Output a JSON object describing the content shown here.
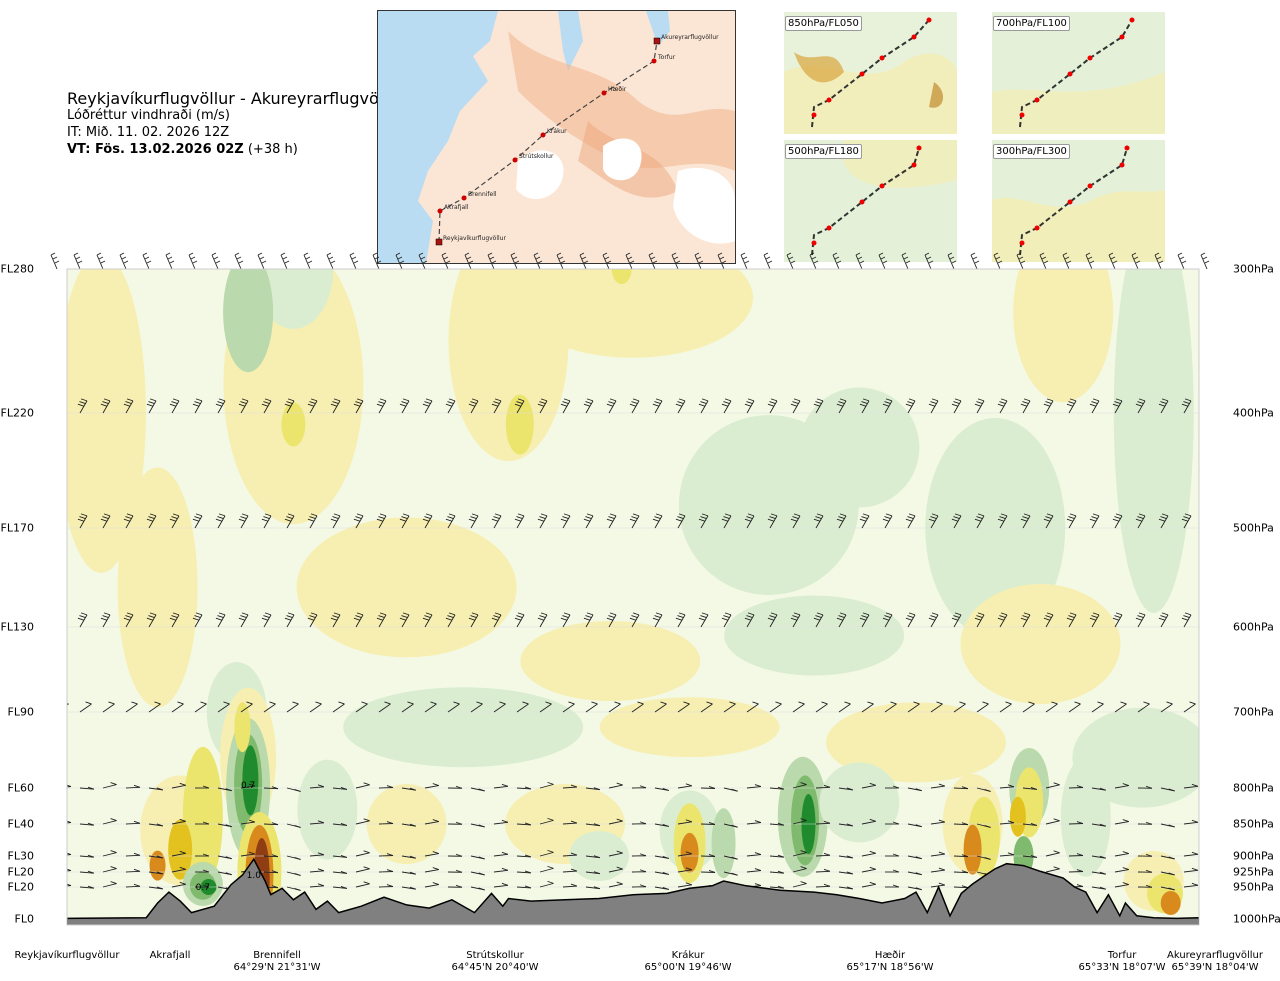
{
  "header": {
    "route": "Reykjavíkurflugvöllur - Akureyrarflugvöllur",
    "parameter": "Lóðréttur vindhraði (m/s)",
    "issued": "IT: Mið. 11. 02. 2026 12Z",
    "valid_prefix": "VT: Fös. 13.02.2026 02Z",
    "valid_suffix": " (+38 h)"
  },
  "map": {
    "points": [
      {
        "name": "Akureyrarflugvöllur"
      },
      {
        "name": "Torfur"
      },
      {
        "name": "Hæðir"
      },
      {
        "name": "Krákur"
      },
      {
        "name": "Strútskollur"
      },
      {
        "name": "Brennifell"
      },
      {
        "name": "Akrafjall"
      },
      {
        "name": "Reykjavíkurflugvöllur"
      }
    ]
  },
  "mini_maps": [
    {
      "label": "850hPa/FL050"
    },
    {
      "label": "700hPa/FL100"
    },
    {
      "label": "500hPa/FL180"
    },
    {
      "label": "300hPa/FL300"
    }
  ],
  "chart_data": {
    "type": "heatmap",
    "variable": "Lóðréttur vindhraði (m/s)",
    "y_levels": [
      {
        "fl": "FL280",
        "hpa": "300hPa",
        "p": 300
      },
      {
        "fl": "FL220",
        "hpa": "400hPa",
        "p": 400
      },
      {
        "fl": "FL170",
        "hpa": "500hPa",
        "p": 500
      },
      {
        "fl": "FL130",
        "hpa": "600hPa",
        "p": 600
      },
      {
        "fl": "FL90",
        "hpa": "700hPa",
        "p": 700
      },
      {
        "fl": "FL60",
        "hpa": "800hPa",
        "p": 800
      },
      {
        "fl": "FL40",
        "hpa": "850hPa",
        "p": 850
      },
      {
        "fl": "FL30",
        "hpa": "900hPa",
        "p": 900
      },
      {
        "fl": "FL20",
        "hpa": "925hPa",
        "p": 925
      },
      {
        "fl": "FL20",
        "hpa": "950hPa",
        "p": 950
      },
      {
        "fl": "FL0",
        "hpa": "1000hPa",
        "p": 1000
      }
    ],
    "x_waypoints": [
      {
        "name": "Reykjavíkurflugvöllur",
        "coords": "",
        "pos": 0.0
      },
      {
        "name": "Akrafjall",
        "coords": "",
        "pos": 0.09
      },
      {
        "name": "Brennifell",
        "coords": "64°29'N 21°31'W",
        "pos": 0.19
      },
      {
        "name": "Strútskollur",
        "coords": "64°45'N 20°40'W",
        "pos": 0.38
      },
      {
        "name": "Krákur",
        "coords": "65°00'N 19°46'W",
        "pos": 0.57
      },
      {
        "name": "Hæðir",
        "coords": "65°17'N 18°56'W",
        "pos": 0.75
      },
      {
        "name": "Torfur",
        "coords": "65°33'N 18°07'W",
        "pos": 0.925
      },
      {
        "name": "Akureyrarflugvöllur",
        "coords": "65°39'N 18°04'W",
        "pos": 1.0
      }
    ],
    "annotations": [
      {
        "text": "0.7",
        "x": 0.16,
        "p": 800
      },
      {
        "text": "1.0",
        "x": 0.165,
        "p": 935
      },
      {
        "text": "0.7",
        "x": 0.12,
        "p": 955
      }
    ],
    "terrain_pressure": [
      [
        0.0,
        999
      ],
      [
        0.07,
        998
      ],
      [
        0.08,
        975
      ],
      [
        0.09,
        958
      ],
      [
        0.1,
        972
      ],
      [
        0.11,
        990
      ],
      [
        0.13,
        980
      ],
      [
        0.145,
        946
      ],
      [
        0.155,
        930
      ],
      [
        0.165,
        905
      ],
      [
        0.175,
        940
      ],
      [
        0.18,
        962
      ],
      [
        0.19,
        952
      ],
      [
        0.2,
        970
      ],
      [
        0.21,
        958
      ],
      [
        0.22,
        985
      ],
      [
        0.23,
        972
      ],
      [
        0.24,
        990
      ],
      [
        0.26,
        980
      ],
      [
        0.28,
        966
      ],
      [
        0.3,
        978
      ],
      [
        0.32,
        983
      ],
      [
        0.34,
        970
      ],
      [
        0.36,
        990
      ],
      [
        0.375,
        960
      ],
      [
        0.385,
        980
      ],
      [
        0.39,
        968
      ],
      [
        0.41,
        972
      ],
      [
        0.44,
        970
      ],
      [
        0.47,
        968
      ],
      [
        0.5,
        962
      ],
      [
        0.53,
        960
      ],
      [
        0.55,
        952
      ],
      [
        0.57,
        948
      ],
      [
        0.58,
        940
      ],
      [
        0.6,
        948
      ],
      [
        0.63,
        955
      ],
      [
        0.66,
        958
      ],
      [
        0.68,
        962
      ],
      [
        0.7,
        968
      ],
      [
        0.72,
        975
      ],
      [
        0.74,
        968
      ],
      [
        0.75,
        958
      ],
      [
        0.76,
        990
      ],
      [
        0.77,
        950
      ],
      [
        0.78,
        995
      ],
      [
        0.79,
        960
      ],
      [
        0.8,
        945
      ],
      [
        0.81,
        932
      ],
      [
        0.82,
        920
      ],
      [
        0.83,
        912
      ],
      [
        0.845,
        915
      ],
      [
        0.86,
        924
      ],
      [
        0.88,
        935
      ],
      [
        0.89,
        950
      ],
      [
        0.9,
        958
      ],
      [
        0.91,
        990
      ],
      [
        0.92,
        962
      ],
      [
        0.93,
        995
      ],
      [
        0.935,
        975
      ],
      [
        0.945,
        995
      ],
      [
        0.96,
        998
      ],
      [
        0.98,
        999
      ],
      [
        1.0,
        998
      ]
    ]
  },
  "colors": {
    "terrain": "#808080",
    "neg_weak": "#f7efb1",
    "neg_mod": "#ece56d",
    "neg_strong": "#e3c21f",
    "neg_stronger": "#d98a1d",
    "neg_max": "#8f3d12",
    "pos_weak": "#dbedd1",
    "pos_mod": "#bad9ac",
    "pos_strong": "#7fba6e",
    "pos_max": "#1f8b2c",
    "route": "#cc0000"
  }
}
